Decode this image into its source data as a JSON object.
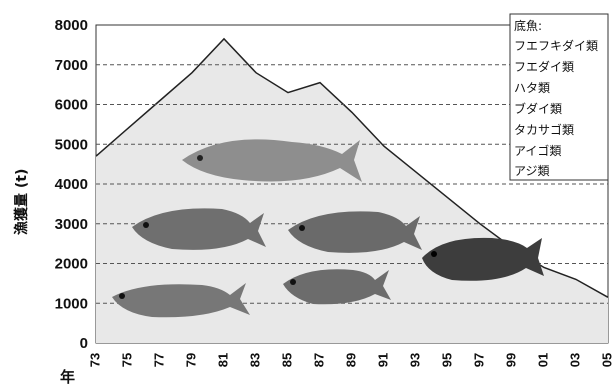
{
  "chart_data": {
    "type": "area",
    "ylabel": "漁獲量 (t)",
    "xlabel_prefix": "年",
    "x": [
      "73",
      "75",
      "77",
      "79",
      "81",
      "83",
      "85",
      "87",
      "89",
      "91",
      "93",
      "95",
      "97",
      "99",
      "01",
      "03",
      "05"
    ],
    "y_ticks": [
      0,
      1000,
      2000,
      3000,
      4000,
      5000,
      6000,
      7000,
      8000
    ],
    "ylim": [
      0,
      8000
    ],
    "series": [
      {
        "values": [
          4700,
          5400,
          6100,
          6800,
          7650,
          6800,
          6300,
          6550,
          5800,
          4950,
          4300,
          3650,
          3000,
          2400,
          1900,
          1600,
          1150
        ]
      }
    ],
    "legend": {
      "title": "底魚:",
      "items": [
        "フエフキダイ類",
        "フエダイ類",
        "ハタ類",
        "ブダイ類",
        "タカサゴ類",
        "アイゴ類",
        "アジ類"
      ]
    },
    "legend_position": "top-right",
    "colors": {
      "area": "#e8e8e8",
      "line": "#222222",
      "grid": "#555555"
    },
    "fish_icons": [
      "fish-icon-1",
      "fish-icon-2",
      "fish-icon-3",
      "fish-icon-4",
      "fish-icon-5",
      "fish-icon-6"
    ]
  }
}
